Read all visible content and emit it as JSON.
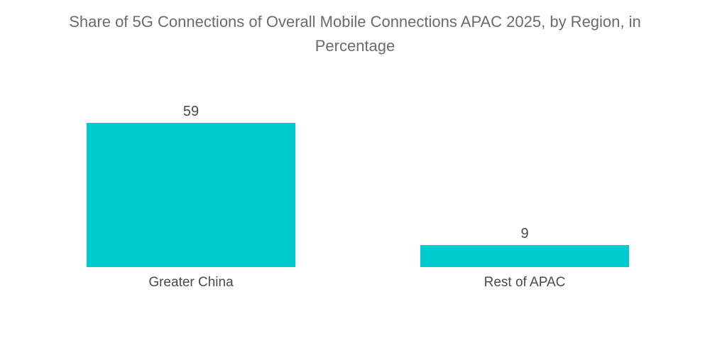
{
  "chart_data": {
    "type": "bar",
    "title": "Share of 5G Connections of Overall Mobile Connections APAC 2025, by Region, in Percentage",
    "categories": [
      "Greater China",
      "Rest of APAC"
    ],
    "values": [
      59,
      9
    ],
    "data_labels": [
      "59",
      "9"
    ],
    "ylim": [
      0,
      59
    ],
    "grid": false,
    "legend": "none",
    "bar_color": "#00cccf"
  }
}
